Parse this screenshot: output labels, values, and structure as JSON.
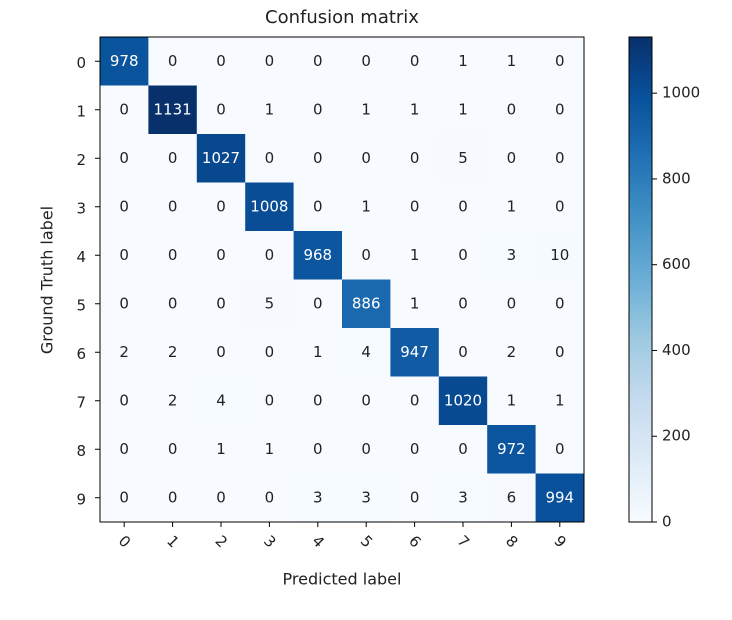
{
  "chart_data": {
    "type": "heatmap",
    "title": "Confusion matrix",
    "xlabel": "Predicted label",
    "ylabel": "Ground Truth label",
    "x_categories": [
      "0",
      "1",
      "2",
      "3",
      "4",
      "5",
      "6",
      "7",
      "8",
      "9"
    ],
    "y_categories": [
      "0",
      "1",
      "2",
      "3",
      "4",
      "5",
      "6",
      "7",
      "8",
      "9"
    ],
    "values": [
      [
        978,
        0,
        0,
        0,
        0,
        0,
        0,
        1,
        1,
        0
      ],
      [
        0,
        1131,
        0,
        1,
        0,
        1,
        1,
        1,
        0,
        0
      ],
      [
        0,
        0,
        1027,
        0,
        0,
        0,
        0,
        5,
        0,
        0
      ],
      [
        0,
        0,
        0,
        1008,
        0,
        1,
        0,
        0,
        1,
        0
      ],
      [
        0,
        0,
        0,
        0,
        968,
        0,
        1,
        0,
        3,
        10
      ],
      [
        0,
        0,
        0,
        5,
        0,
        886,
        1,
        0,
        0,
        0
      ],
      [
        2,
        2,
        0,
        0,
        1,
        4,
        947,
        0,
        2,
        0
      ],
      [
        0,
        2,
        4,
        0,
        0,
        0,
        0,
        1020,
        1,
        1
      ],
      [
        0,
        0,
        1,
        1,
        0,
        0,
        0,
        0,
        972,
        0
      ],
      [
        0,
        0,
        0,
        0,
        3,
        3,
        0,
        3,
        6,
        994
      ]
    ],
    "colormap": "Blues",
    "clim": [
      0,
      1131
    ],
    "cticks": [
      0,
      200,
      400,
      600,
      800,
      1000
    ]
  }
}
